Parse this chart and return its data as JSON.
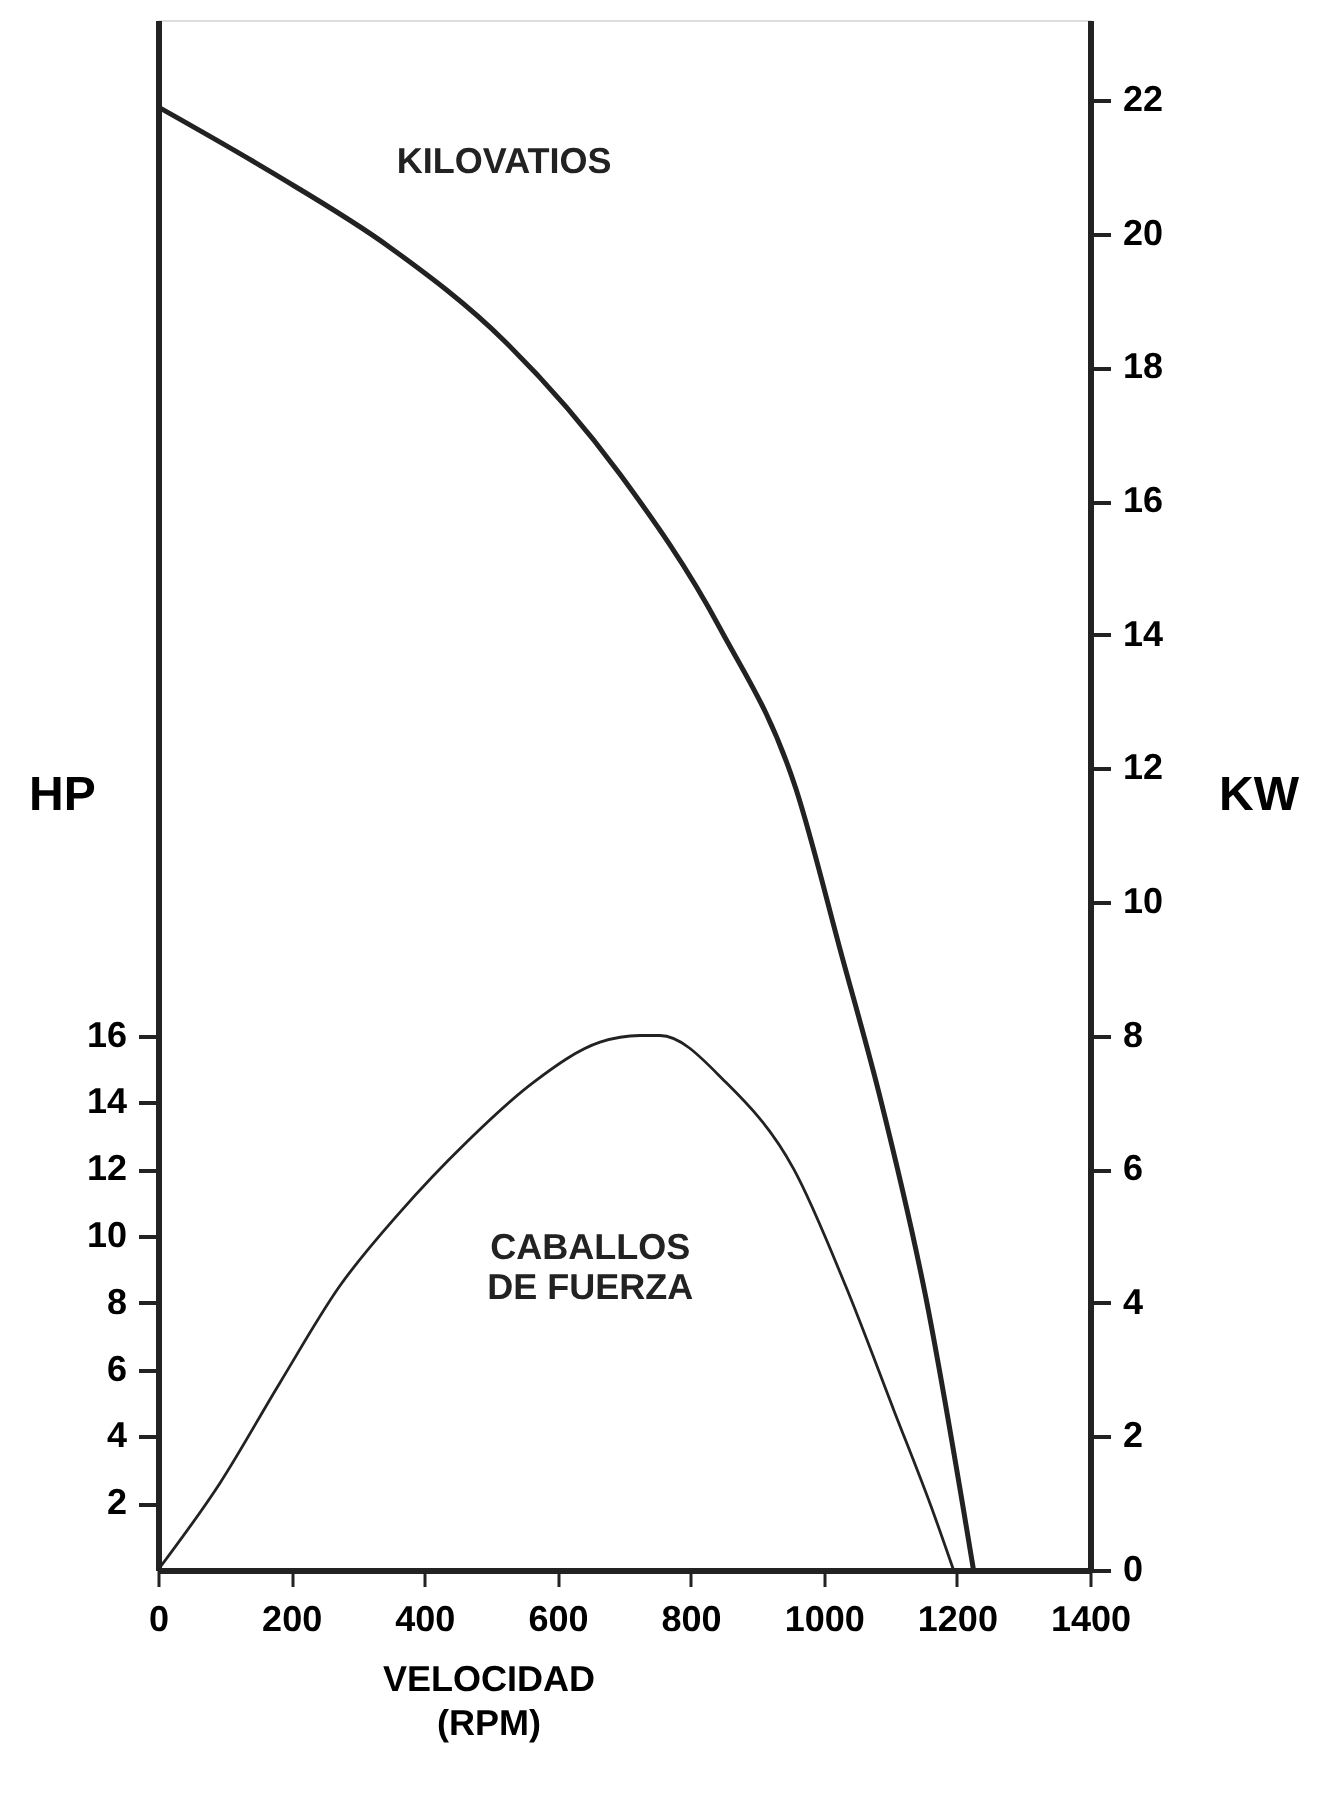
{
  "chart_data": {
    "type": "line",
    "xlabel": "VELOCIDAD\n(RPM)",
    "ylabel": "HP",
    "y2label": "KW",
    "xlim": [
      0,
      1400
    ],
    "xticks": [
      0,
      200,
      400,
      600,
      800,
      1000,
      1200,
      1400
    ],
    "ylim": [
      0,
      46.4
    ],
    "yticks": [
      2,
      4,
      6,
      8,
      10,
      12,
      14,
      16
    ],
    "y2lim": [
      0,
      23.2
    ],
    "y2ticks": [
      0,
      2,
      4,
      6,
      8,
      10,
      12,
      14,
      16,
      18,
      20,
      22
    ],
    "grid": false,
    "marker": "none",
    "line_style": "solid",
    "series": [
      {
        "name": "CABALLOS\nDE FUERZA",
        "color": "#222222",
        "x": [
          0,
          93,
          183,
          273,
          363,
          463,
          564,
          664,
          724,
          754,
          853,
          955,
          1033,
          1105,
          1165,
          1195
        ],
        "values": [
          0,
          2.6,
          5.6,
          8.5,
          10.7,
          12.8,
          14.6,
          15.8,
          16.0,
          16.0,
          14.6,
          12.0,
          8.5,
          4.8,
          1.7,
          0
        ]
      },
      {
        "name": "KILOVATIOS",
        "color": "#222222",
        "axis": "y2",
        "x": [
          0,
          174,
          348,
          520,
          694,
          844,
          958,
          1027,
          1084,
          1153,
          1225
        ],
        "values": [
          21.9,
          20.9,
          19.8,
          18.4,
          16.4,
          14.1,
          11.7,
          9.2,
          7.1,
          4.1,
          0
        ]
      }
    ]
  }
}
